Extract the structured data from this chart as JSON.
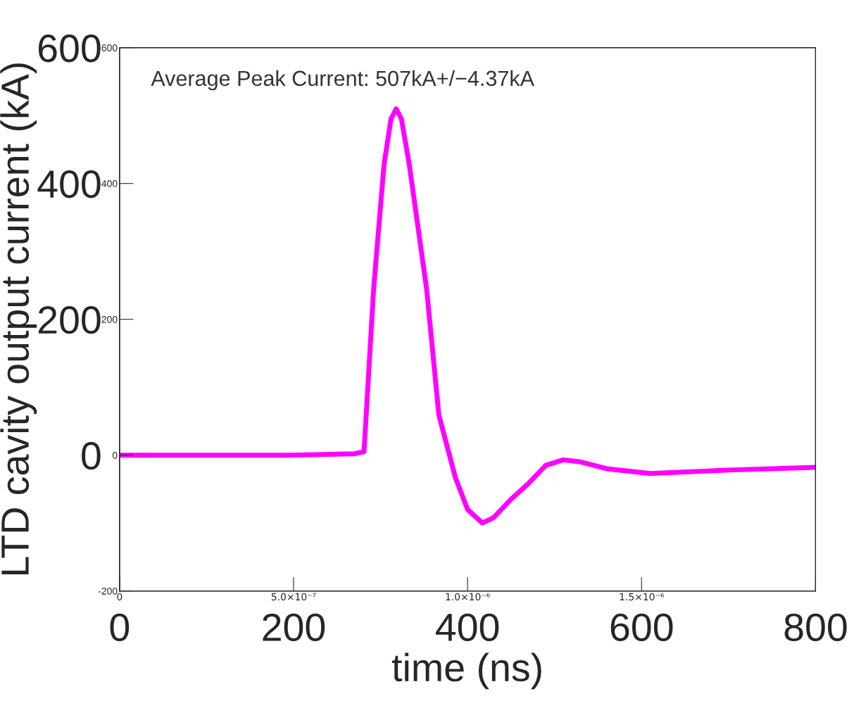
{
  "chart_data": {
    "type": "line",
    "xlabel": "time (ns)",
    "ylabel": "LTD cavity output current (kA)",
    "annotations": [
      "Average Peak Current: 507kA+/−4.37kA"
    ],
    "x": [
      0,
      100,
      200,
      270,
      281,
      292,
      304,
      312,
      318,
      324,
      333,
      353,
      367,
      386,
      400,
      417,
      430,
      450,
      469,
      490,
      510,
      530,
      560,
      610,
      700,
      800
    ],
    "series": [
      {
        "color": "#ff00ff",
        "values": [
          0,
          0,
          0,
          2,
          5,
          244,
          428,
          495,
          510,
          495,
          428,
          244,
          59,
          -33,
          -80,
          -100,
          -92,
          -65,
          -43,
          -15,
          -7,
          -10,
          -20,
          -27,
          -22,
          -18
        ]
      }
    ],
    "xlim": [
      0,
      800
    ],
    "xticks": [
      0,
      200,
      400,
      600,
      800
    ],
    "ylim": [
      -200,
      600
    ],
    "yticks": [
      0,
      200,
      400,
      600
    ],
    "x2lim": [
      0,
      2e-06
    ],
    "x2ticks": [
      0,
      {
        "value": 5e-07,
        "label": "5.0×10⁻⁷"
      },
      {
        "value": 1e-06,
        "label": "1.0×10⁻⁶"
      },
      {
        "value": 1.5e-06,
        "label": "1.5×10⁻⁶"
      },
      {
        "value": 2e-06,
        "label": null
      }
    ],
    "y2lim": [
      -200,
      600
    ],
    "y2ticks": [
      -200,
      0,
      200,
      400,
      600
    ],
    "grid": false,
    "legend": false
  }
}
